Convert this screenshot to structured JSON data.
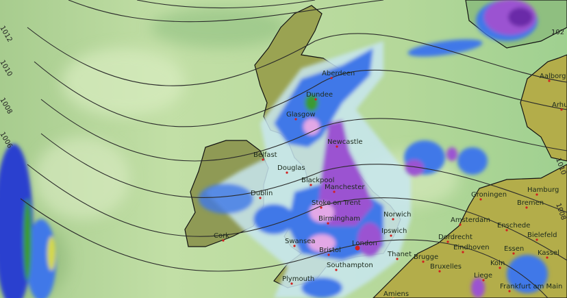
{
  "map": {
    "type": "weather precipitation and pressure map",
    "colors": {
      "sea": "#a9d08f",
      "sea_light": "#cde6b0",
      "land_uk": "#9aa352",
      "land_europe": "#b3ad4a",
      "rain_light": "#c8e6f0",
      "rain_moderate": "#3f78e8",
      "rain_heavy": "#2a3fcf",
      "rain_very_heavy": "#9b52d1",
      "rain_extreme": "#e3a8e6",
      "convective": "#3a9a32",
      "isobar": "#2a2a2a"
    },
    "isobar_labels": [
      "1012",
      "1010",
      "1008",
      "1006",
      "102",
      "1010",
      "1008"
    ],
    "cities": [
      "Aberdeen",
      "Dundee",
      "Glasgow",
      "Newcastle",
      "Belfast",
      "Douglas",
      "Blackpool",
      "Manchester",
      "Stoke on Trent",
      "Birmingham",
      "Norwich",
      "Ipswich",
      "Dublin",
      "Cork",
      "Swansea",
      "Bristol",
      "London",
      "Thanet",
      "Southampton",
      "Plymouth",
      "Amiens",
      "Aalborg",
      "Arhus",
      "Hamburg",
      "Groningen",
      "Bremen",
      "Amsterdam",
      "Enschede",
      "Bielefeld",
      "Dordrecht",
      "Eindhoven",
      "Essen",
      "Kassel",
      "Brugge",
      "Bruxelles",
      "Koln",
      "Liege",
      "Frankfurt am Main"
    ]
  }
}
